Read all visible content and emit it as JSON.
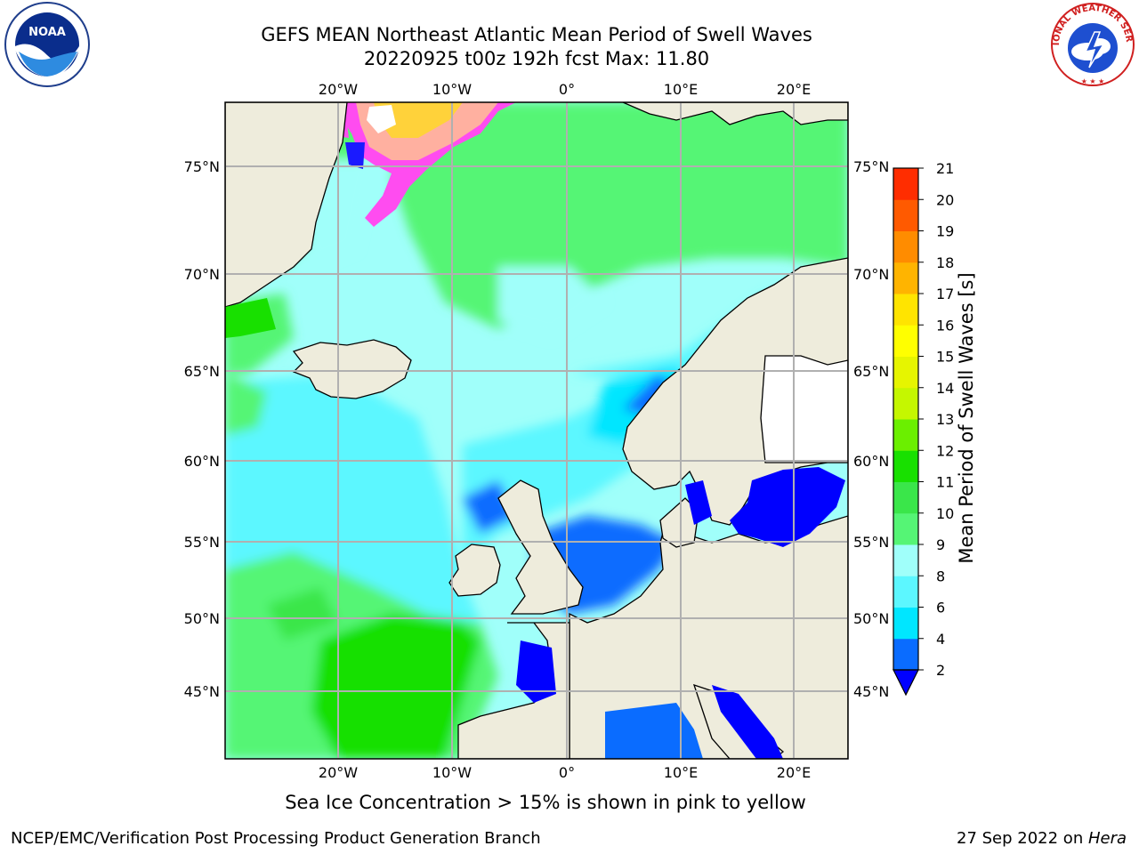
{
  "title_line1": "GEFS MEAN Northeast Atlantic Mean Period of Swell Waves",
  "title_line2": "20220925 t00z 192h fcst   Max: 11.80",
  "map": {
    "lon_labels_top": [
      "20°W",
      "10°W",
      "0°",
      "10°E",
      "20°E"
    ],
    "lon_labels_bottom": [
      "20°W",
      "10°W",
      "0°",
      "10°E",
      "20°E"
    ],
    "lat_labels_left": [
      "75°N",
      "70°N",
      "65°N",
      "60°N",
      "55°N",
      "50°N",
      "45°N"
    ],
    "lat_labels_right": [
      "75°N",
      "70°N",
      "65°N",
      "60°N",
      "55°N",
      "50°N",
      "45°N"
    ],
    "lon_range": [
      -30,
      25
    ],
    "lat_range": [
      41,
      78
    ],
    "land_color": "#eeecdc",
    "grid_color": "#b0b0b0"
  },
  "colorbar": {
    "title": "Mean Period of Swell Waves [s]",
    "tick_labels": [
      "2",
      "4",
      "6",
      "8",
      "9",
      "10",
      "11",
      "12",
      "13",
      "14",
      "15",
      "16",
      "17",
      "18",
      "19",
      "20",
      "21"
    ],
    "colors": [
      "#0a6cff",
      "#00e6ff",
      "#5cf7ff",
      "#a0fffa",
      "#55f575",
      "#3ae64a",
      "#18e000",
      "#6bef00",
      "#c5f700",
      "#e6f500",
      "#ffff00",
      "#ffe400",
      "#ffb400",
      "#ff8c00",
      "#ff5a00",
      "#ff2d00",
      "#ff0000"
    ],
    "under_color": "#0000ff"
  },
  "ice_note": "Sea Ice Concentration > 15% is shown in pink to yellow",
  "footer_left": "NCEP/EMC/Verification Post Processing Product Generation Branch",
  "footer_date": "27 Sep 2022 on ",
  "footer_machine": "Hera",
  "logos": {
    "noaa_text": "NOAA",
    "nws_text": "NATIONAL WEATHER SERVICE"
  }
}
